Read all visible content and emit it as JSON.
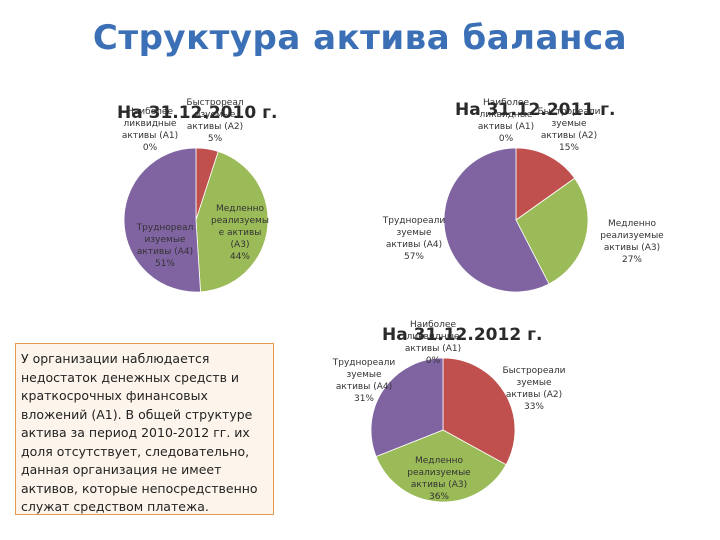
{
  "title": "Структура актива баланса",
  "note": "У организации наблюдается недостаток денежных средств и краткосрочных финансовых вложений (А1). В общей структуре актива за период 2010-2012 гг. их доля отсутствует, следовательно, данная организация не имеет активов, которые непосредственно служат средством платежа.",
  "colors": {
    "a1": "#4f81bd",
    "a2": "#c0504d",
    "a3": "#9bbb59",
    "a4": "#8064a2"
  },
  "chart_data": [
    {
      "type": "pie",
      "title": "На 31.12.2010 г.",
      "categories": [
        "Наиболее ликвидные активы (А1)",
        "Быстрореализуемые активы (А2)",
        "Медленно реализуемые активы (А3)",
        "Труднореализуемые активы (А4)"
      ],
      "values": [
        0,
        5,
        44,
        51
      ],
      "labels": [
        "Наиболее\nликвидные\nактивы (А1)\n0%",
        "Быстрореал\nизуемые\nактивы (А2)\n5%",
        "Медленно\nреализуемы\nе активы\n(А3)\n44%",
        "Труднореал\nизуемые\nактивы (А4)\n51%"
      ]
    },
    {
      "type": "pie",
      "title": "На 31.12.2011 г.",
      "categories": [
        "Наиболее ликвидные активы (А1)",
        "Быстрореализуемые активы (А2)",
        "Медленно реализуемые активы (А3)",
        "Труднореализуемые активы (А4)"
      ],
      "values": [
        0,
        15,
        27,
        57
      ],
      "labels": [
        "Наиболее\nликвидные\nактивы (А1)\n0%",
        "Быстрореали\nзуемые\nактивы (А2)\n15%",
        "Медленно\nреализуемые\nактивы (А3)\n27%",
        "Труднореали\nзуемые\nактивы (А4)\n57%"
      ]
    },
    {
      "type": "pie",
      "title": "На 31.12.2012 г.",
      "categories": [
        "Наиболее ликвидные активы (А1)",
        "Быстрореализуемые активы (А2)",
        "Медленно реализуемые активы (А3)",
        "Труднореализуемые активы (А4)"
      ],
      "values": [
        0,
        33,
        36,
        31
      ],
      "labels": [
        "Наиболее\nликвидные\nактивы (А1)\n0%",
        "Быстрореали\nзуемые\nактивы (А2)\n33%",
        "Медленно\nреализуемые\nактивы (А3)\n36%",
        "Труднореали\nзуемые\nактивы (А4)\n31%"
      ]
    }
  ]
}
